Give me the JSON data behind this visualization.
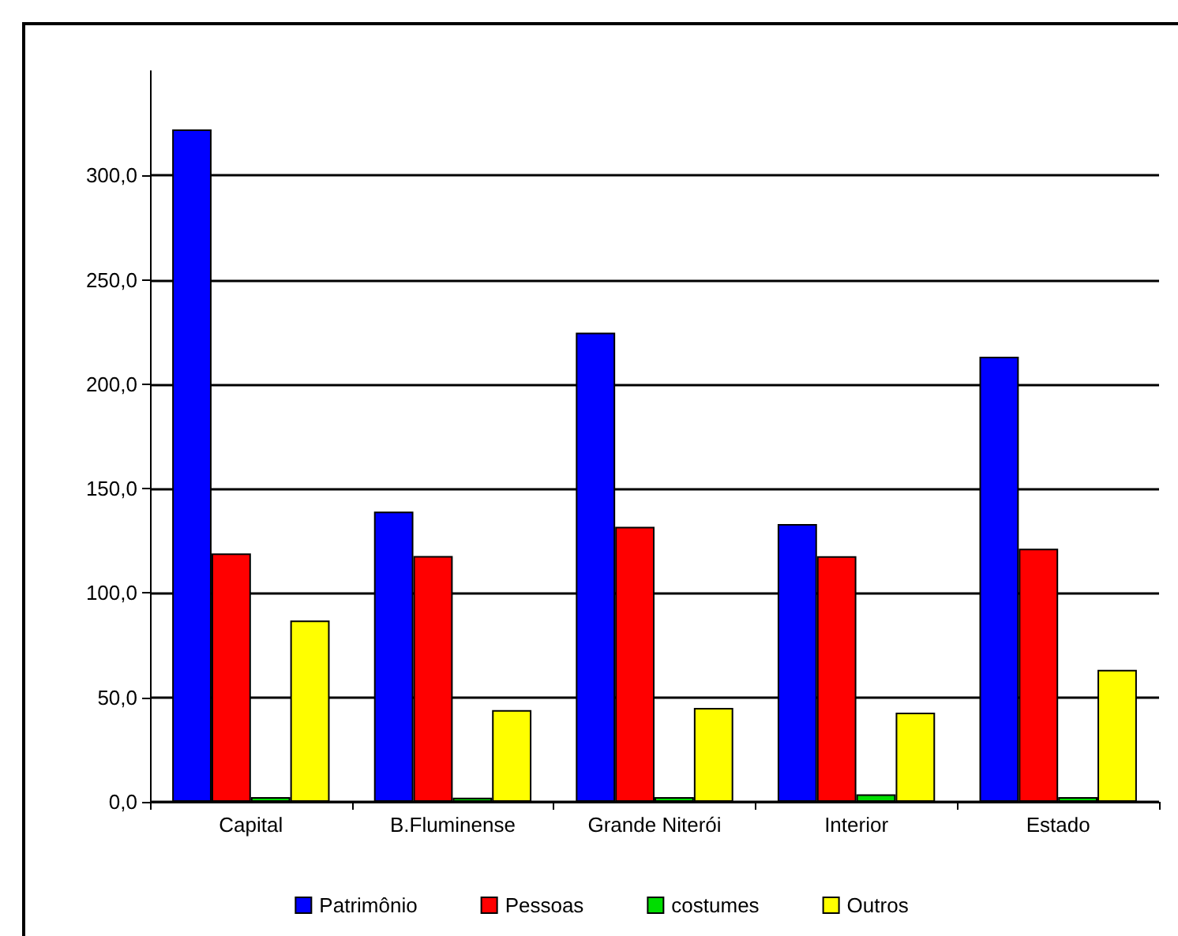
{
  "chart_data": {
    "type": "bar",
    "categories": [
      "Capital",
      "B.Fluminense",
      "Grande Niterói",
      "Interior",
      "Estado"
    ],
    "series": [
      {
        "name": "Patrimônio",
        "color": "#0000ff",
        "values": [
          322,
          139,
          224.7,
          133,
          213.2
        ]
      },
      {
        "name": "Pessoas",
        "color": "#ff0000",
        "values": [
          119,
          117.7,
          131.7,
          117.6,
          121.2
        ]
      },
      {
        "name": "costumes",
        "color": "#00dd00",
        "values": [
          2.3,
          2,
          2.3,
          3.6,
          2.3
        ]
      },
      {
        "name": "Outros",
        "color": "#ffff00",
        "values": [
          86.8,
          43.9,
          45,
          42.7,
          63.2
        ]
      }
    ],
    "ylim": [
      0,
      350
    ],
    "yticks": [
      {
        "value": 0,
        "label": "0,0"
      },
      {
        "value": 50,
        "label": "50,0"
      },
      {
        "value": 100,
        "label": "100,0"
      },
      {
        "value": 150,
        "label": "150,0"
      },
      {
        "value": 200,
        "label": "200,0"
      },
      {
        "value": 250,
        "label": "250,0"
      },
      {
        "value": 300,
        "label": "300,0"
      }
    ],
    "grid": "y",
    "legend": "bottom"
  }
}
